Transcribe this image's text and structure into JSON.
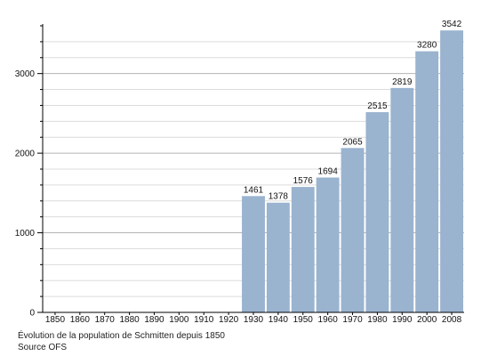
{
  "chart_data": {
    "type": "bar",
    "categories": [
      "1850",
      "1860",
      "1870",
      "1880",
      "1890",
      "1900",
      "1910",
      "1920",
      "1930",
      "1940",
      "1950",
      "1960",
      "1970",
      "1980",
      "1990",
      "2000",
      "2008"
    ],
    "values": [
      null,
      null,
      null,
      null,
      null,
      null,
      null,
      null,
      1461,
      1378,
      1576,
      1694,
      2065,
      2515,
      2819,
      3280,
      3542
    ],
    "data_labels": [
      "",
      "",
      "",
      "",
      "",
      "",
      "",
      "",
      "1461",
      "1378",
      "1576",
      "1694",
      "2065",
      "2515",
      "2819",
      "3280",
      "3542"
    ],
    "y_ticks": [
      "0",
      "1000",
      "2000",
      "3000"
    ],
    "ylim": [
      0,
      3600
    ],
    "grid": true,
    "bar_color": "#9ab3cf",
    "grid_major_color": "#b4b4b4",
    "grid_minor_color": "#dcdcdc"
  },
  "caption": {
    "title": "Évolution de la population de Schmitten depuis 1850",
    "source": "Source OFS"
  }
}
